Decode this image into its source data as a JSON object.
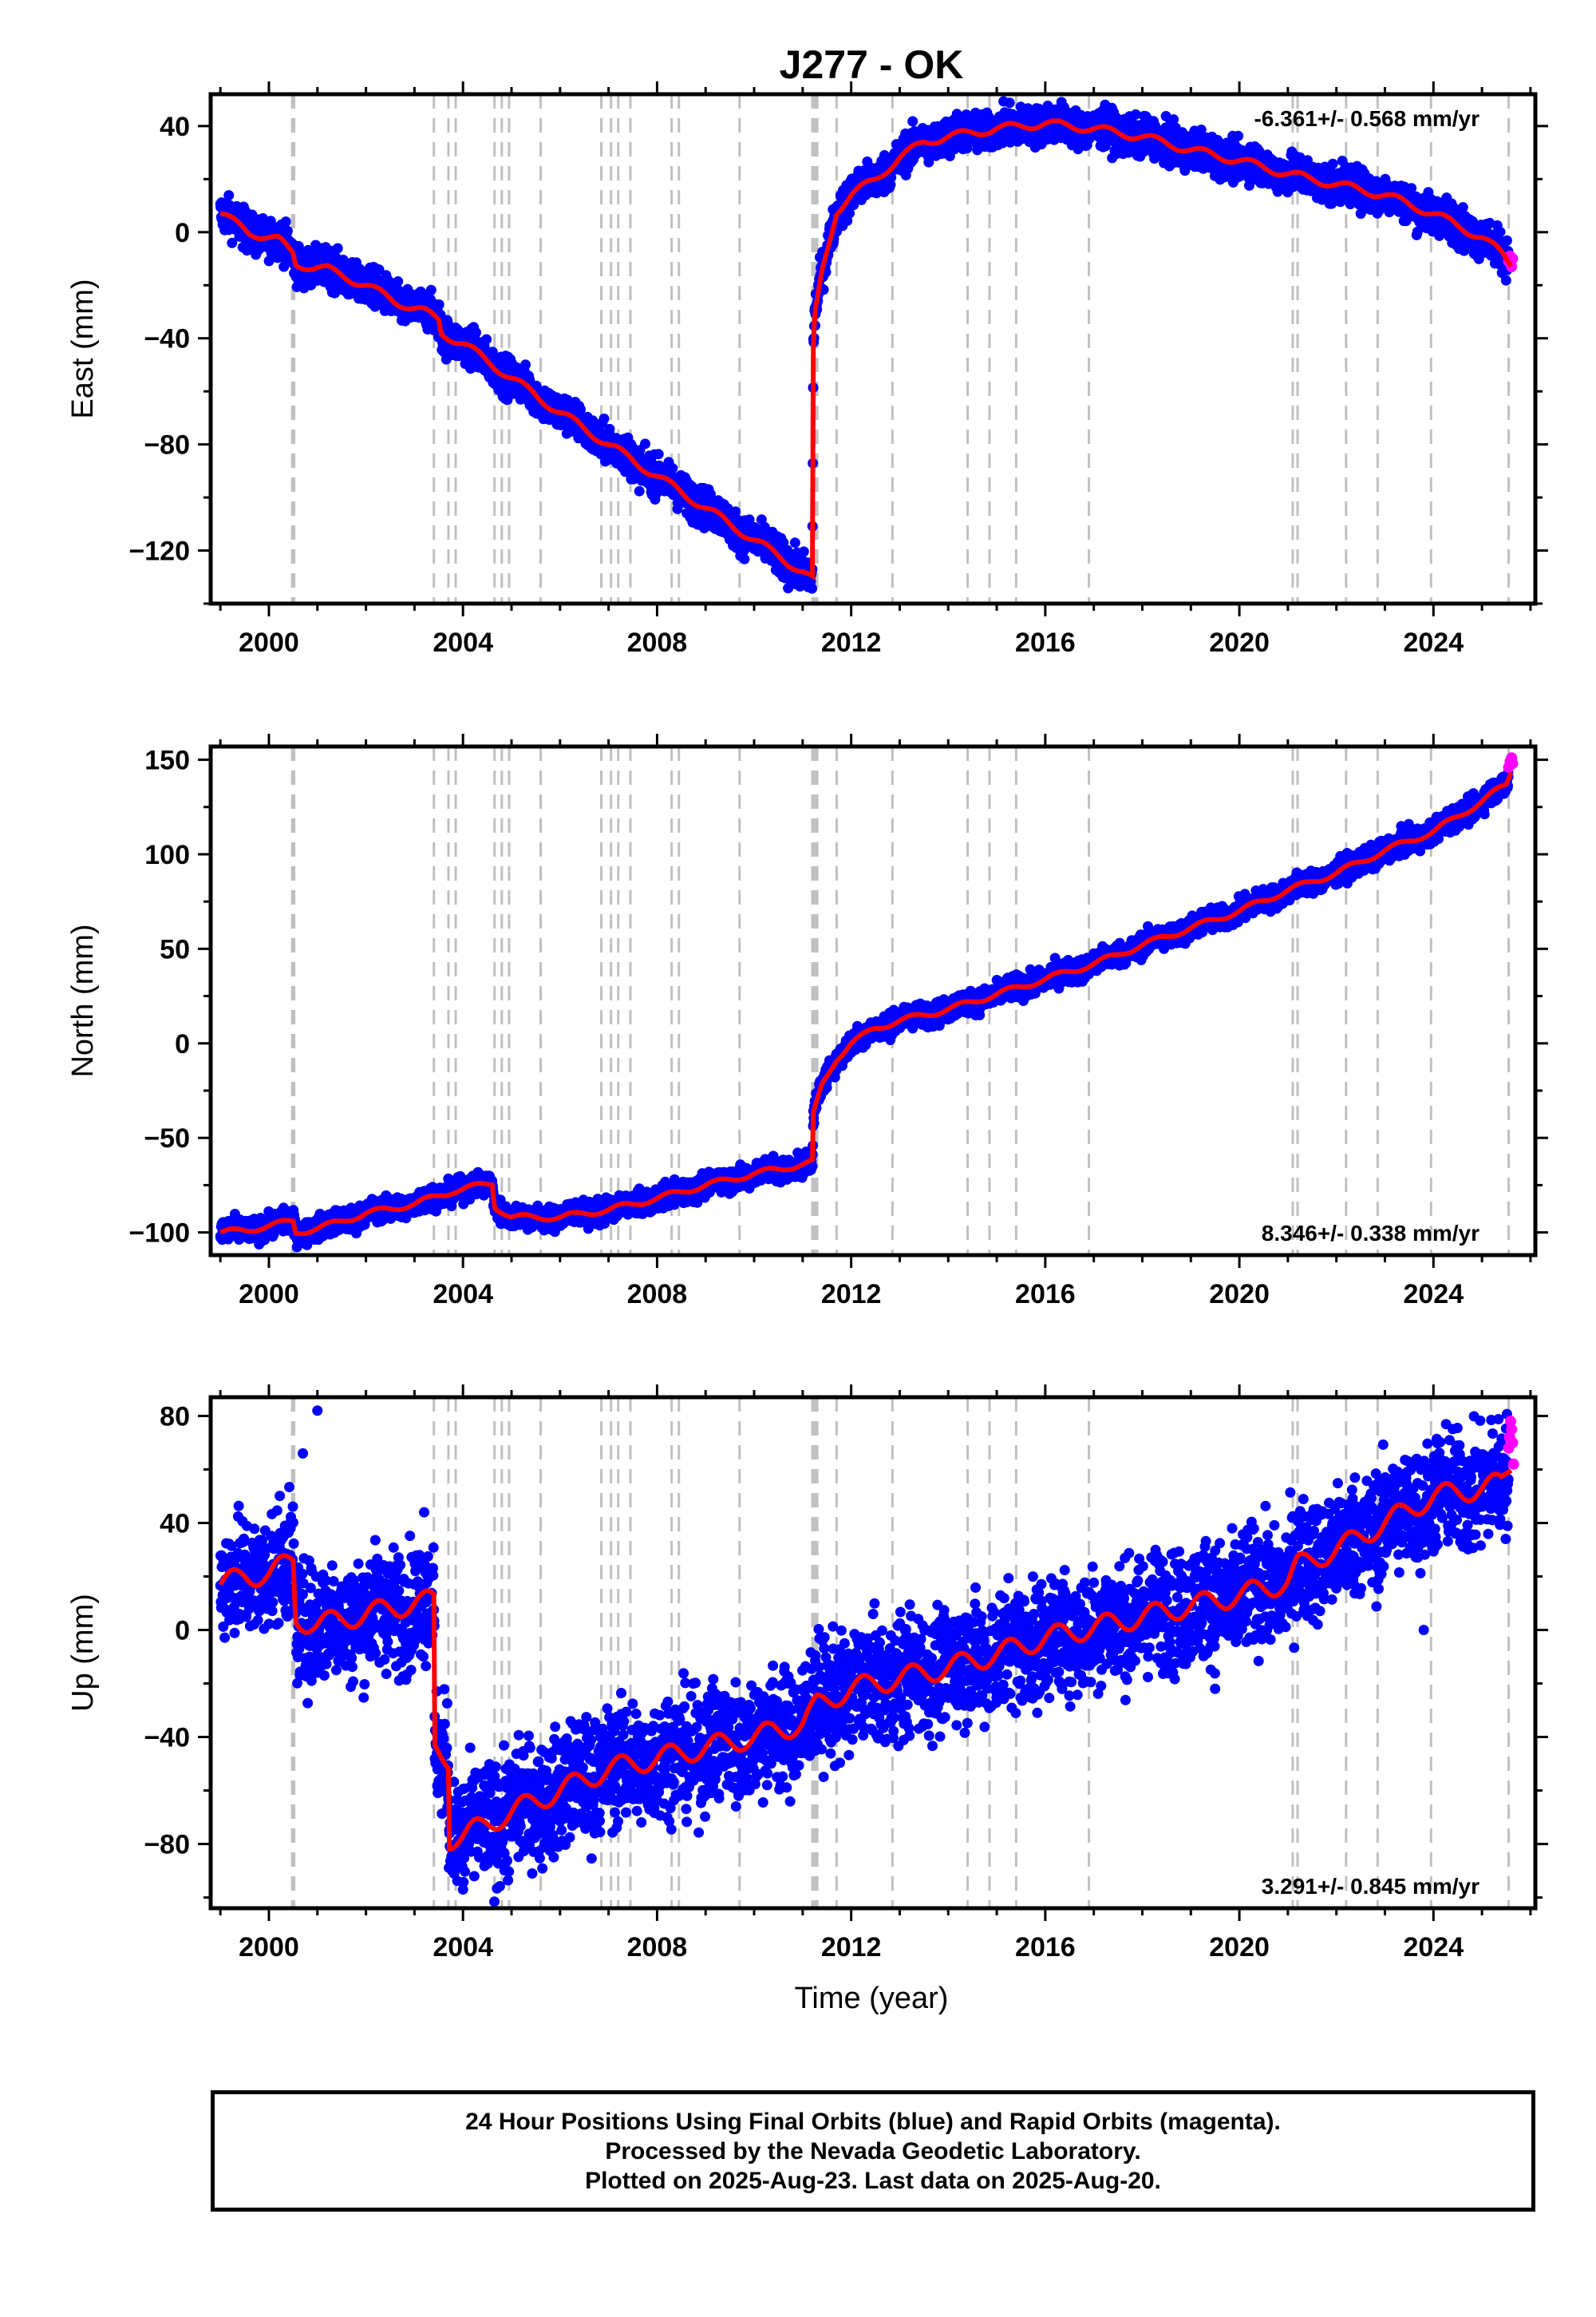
{
  "title": "J277 - OK",
  "footer": {
    "line1": "24 Hour Positions Using Final Orbits (blue) and Rapid Orbits (magenta).",
    "line2": "Processed by the Nevada Geodetic Laboratory.",
    "line3": "Plotted on 2025-Aug-23. Last data on 2025-Aug-20."
  },
  "colors": {
    "final_orbits": "#0000ff",
    "rapid_orbits": "#ff00ff",
    "model_fit": "#ff0000",
    "event_lines": "#c0c0c0"
  },
  "chart_data": [
    {
      "type": "scatter",
      "name": "east",
      "ylabel": "East (mm)",
      "xlabel": "",
      "xlim": [
        1998.8,
        2026.1
      ],
      "ylim": [
        -140,
        52
      ],
      "xticks": [
        2000,
        2004,
        2008,
        2012,
        2016,
        2020,
        2024
      ],
      "yticks": [
        -120,
        -80,
        -40,
        0,
        40
      ],
      "rate": "-6.361+/- 0.568 mm/yr",
      "rate_position": "top-right",
      "grid": false,
      "fit_curve": [
        [
          1999.0,
          7
        ],
        [
          1999.6,
          0
        ],
        [
          2000.2,
          -3
        ],
        [
          2000.5,
          -8
        ],
        [
          2000.55,
          -12
        ],
        [
          2001.2,
          -14
        ],
        [
          2002.0,
          -20
        ],
        [
          2002.6,
          -26
        ],
        [
          2003.2,
          -30
        ],
        [
          2003.5,
          -33
        ],
        [
          2003.55,
          -38
        ],
        [
          2004.0,
          -42
        ],
        [
          2005.0,
          -55
        ],
        [
          2006.0,
          -68
        ],
        [
          2007.0,
          -80
        ],
        [
          2008.0,
          -92
        ],
        [
          2009.0,
          -104
        ],
        [
          2010.0,
          -116
        ],
        [
          2011.0,
          -128
        ],
        [
          2011.2,
          -131
        ],
        [
          2011.22,
          -45
        ],
        [
          2011.25,
          -32
        ],
        [
          2011.4,
          -15
        ],
        [
          2011.7,
          8
        ],
        [
          2012.0,
          14
        ],
        [
          2012.5,
          20
        ],
        [
          2013.0,
          28
        ],
        [
          2013.5,
          34
        ],
        [
          2014.0,
          36
        ],
        [
          2015.0,
          39
        ],
        [
          2016.0,
          41
        ],
        [
          2017.0,
          39
        ],
        [
          2018.0,
          36
        ],
        [
          2019.0,
          31
        ],
        [
          2020.0,
          27
        ],
        [
          2021.0,
          22
        ],
        [
          2022.0,
          18
        ],
        [
          2023.0,
          14
        ],
        [
          2024.0,
          7
        ],
        [
          2025.0,
          -2
        ],
        [
          2025.4,
          -8
        ],
        [
          2025.6,
          -12
        ]
      ],
      "scatter_spread": 3.5,
      "rapid_points": [
        [
          2025.55,
          -11
        ],
        [
          2025.58,
          -9
        ],
        [
          2025.61,
          -13
        ],
        [
          2025.63,
          -10
        ]
      ]
    },
    {
      "type": "scatter",
      "name": "north",
      "ylabel": "North (mm)",
      "xlabel": "",
      "xlim": [
        1998.8,
        2026.1
      ],
      "ylim": [
        -112,
        157
      ],
      "xticks": [
        2000,
        2004,
        2008,
        2012,
        2016,
        2020,
        2024
      ],
      "yticks": [
        -100,
        -50,
        0,
        50,
        100,
        150
      ],
      "rate": "8.346+/- 0.338 mm/yr",
      "rate_position": "bottom-right",
      "grid": false,
      "fit_curve": [
        [
          1999.0,
          -100
        ],
        [
          1999.5,
          -99
        ],
        [
          2000.5,
          -94
        ],
        [
          2000.55,
          -100
        ],
        [
          2001.0,
          -98
        ],
        [
          2002.0,
          -90
        ],
        [
          2003.0,
          -85
        ],
        [
          2003.8,
          -78
        ],
        [
          2004.6,
          -74
        ],
        [
          2004.65,
          -86
        ],
        [
          2005.0,
          -92
        ],
        [
          2006.0,
          -92
        ],
        [
          2007.0,
          -88
        ],
        [
          2008.0,
          -82
        ],
        [
          2009.0,
          -75
        ],
        [
          2010.0,
          -69
        ],
        [
          2011.0,
          -64
        ],
        [
          2011.2,
          -63
        ],
        [
          2011.22,
          -38
        ],
        [
          2011.4,
          -22
        ],
        [
          2011.7,
          -8
        ],
        [
          2012.0,
          0
        ],
        [
          2012.5,
          8
        ],
        [
          2013.0,
          12
        ],
        [
          2014.0,
          18
        ],
        [
          2015.0,
          26
        ],
        [
          2016.0,
          34
        ],
        [
          2017.0,
          42
        ],
        [
          2018.0,
          52
        ],
        [
          2019.0,
          61
        ],
        [
          2020.0,
          70
        ],
        [
          2021.0,
          81
        ],
        [
          2022.0,
          90
        ],
        [
          2023.0,
          102
        ],
        [
          2024.0,
          112
        ],
        [
          2025.0,
          128
        ],
        [
          2025.5,
          137
        ],
        [
          2025.6,
          144
        ]
      ],
      "scatter_spread": 3.0,
      "rapid_points": [
        [
          2025.55,
          146
        ],
        [
          2025.58,
          149
        ],
        [
          2025.61,
          151
        ],
        [
          2025.63,
          148
        ]
      ]
    },
    {
      "type": "scatter",
      "name": "up",
      "ylabel": "Up (mm)",
      "xlabel": "Time (year)",
      "xlim": [
        1998.8,
        2026.1
      ],
      "ylim": [
        -104,
        87
      ],
      "xticks": [
        2000,
        2004,
        2008,
        2012,
        2016,
        2020,
        2024
      ],
      "yticks": [
        -80,
        -40,
        0,
        40,
        80
      ],
      "rate": "3.291+/- 0.845 mm/yr",
      "rate_position": "bottom-right",
      "grid": false,
      "fit_curve": [
        [
          1999.0,
          17
        ],
        [
          1999.5,
          20
        ],
        [
          2000.0,
          21
        ],
        [
          2000.5,
          26
        ],
        [
          2000.55,
          4
        ],
        [
          2001.0,
          2
        ],
        [
          2002.0,
          6
        ],
        [
          2003.0,
          10
        ],
        [
          2003.4,
          11
        ],
        [
          2003.42,
          -45
        ],
        [
          2003.7,
          -48
        ],
        [
          2003.72,
          -78
        ],
        [
          2004.0,
          -77
        ],
        [
          2005.0,
          -68
        ],
        [
          2006.0,
          -60
        ],
        [
          2007.0,
          -52
        ],
        [
          2008.0,
          -48
        ],
        [
          2009.0,
          -44
        ],
        [
          2010.0,
          -40
        ],
        [
          2011.0,
          -35
        ],
        [
          2011.3,
          -28
        ],
        [
          2012.0,
          -22
        ],
        [
          2013.0,
          -18
        ],
        [
          2014.0,
          -14
        ],
        [
          2015.0,
          -9
        ],
        [
          2016.0,
          -3
        ],
        [
          2017.0,
          1
        ],
        [
          2018.0,
          5
        ],
        [
          2019.0,
          9
        ],
        [
          2020.0,
          13
        ],
        [
          2021.0,
          18
        ],
        [
          2021.2,
          24
        ],
        [
          2022.0,
          30
        ],
        [
          2023.0,
          40
        ],
        [
          2024.0,
          50
        ],
        [
          2025.0,
          53
        ],
        [
          2025.4,
          55
        ],
        [
          2025.6,
          62
        ]
      ],
      "scatter_spread": 11,
      "rapid_points": [
        [
          2025.55,
          68
        ],
        [
          2025.57,
          72
        ],
        [
          2025.59,
          78
        ],
        [
          2025.61,
          75
        ],
        [
          2025.63,
          70
        ],
        [
          2025.65,
          62
        ]
      ]
    }
  ],
  "event_lines": [
    2000.48,
    2000.52,
    2003.4,
    2003.7,
    2003.85,
    2004.65,
    2004.8,
    2004.95,
    2005.6,
    2006.85,
    2007.05,
    2007.2,
    2007.45,
    2008.3,
    2008.45,
    2009.7,
    2011.2,
    2011.25,
    2011.3,
    2011.7,
    2012.85,
    2014.4,
    2014.85,
    2015.4,
    2016.9,
    2021.1,
    2021.2,
    2022.2,
    2022.85,
    2023.95,
    2025.55
  ]
}
